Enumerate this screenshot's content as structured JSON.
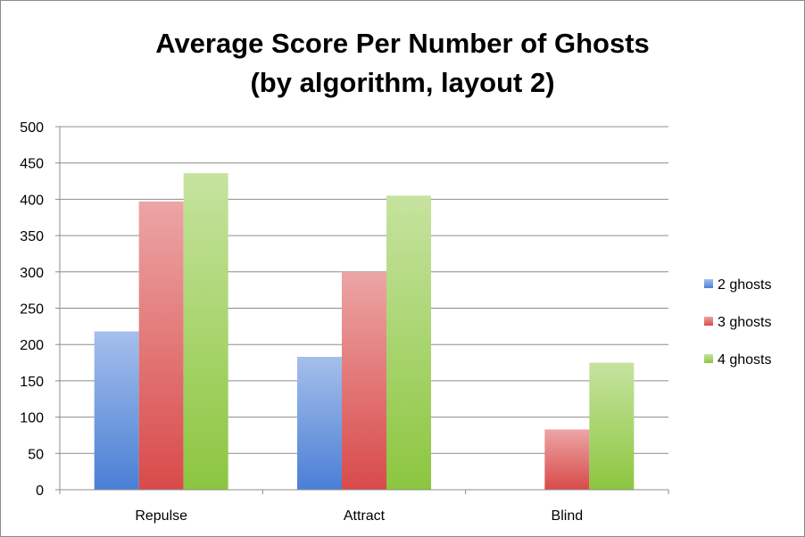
{
  "chart_data": {
    "type": "bar",
    "title": "Average Score Per Number of Ghosts",
    "subtitle": "(by algorithm, layout 2)",
    "categories": [
      "Repulse",
      "Attract",
      "Blind"
    ],
    "series": [
      {
        "name": "2 ghosts",
        "values": [
          218,
          183,
          0
        ],
        "color": "#4a7fd6"
      },
      {
        "name": "3 ghosts",
        "values": [
          397,
          300,
          83
        ],
        "color": "#d94a4a"
      },
      {
        "name": "4 ghosts",
        "values": [
          436,
          405,
          175
        ],
        "color": "#8cc63f"
      }
    ],
    "ylim": [
      0,
      500
    ],
    "yticks": [
      "0",
      "50",
      "100",
      "150",
      "200",
      "250",
      "300",
      "350",
      "400",
      "450",
      "500"
    ],
    "grid": true,
    "legend": "right"
  }
}
